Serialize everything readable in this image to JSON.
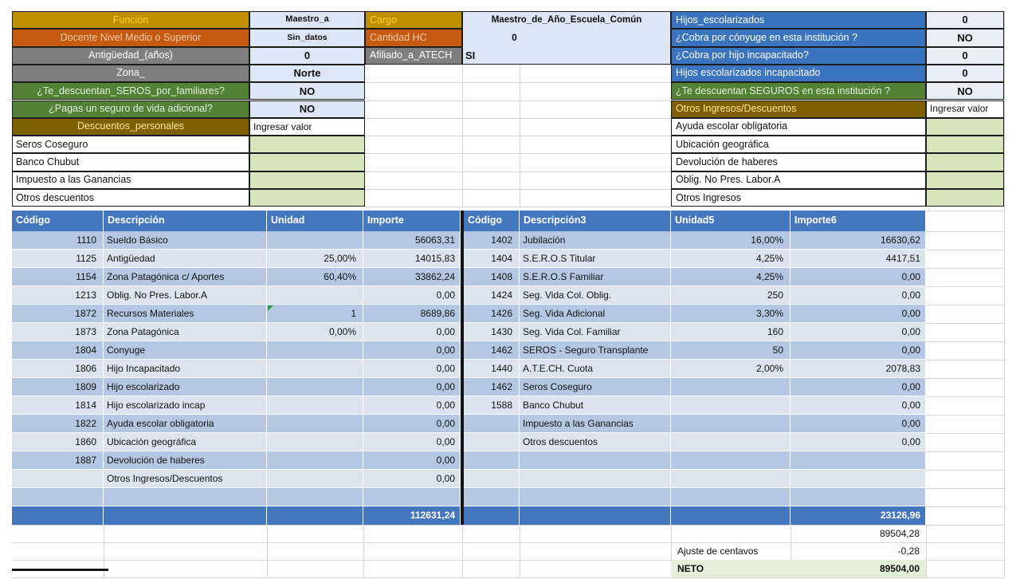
{
  "colors": {
    "gold": "#BF8F00",
    "orange": "#C55A11",
    "gray": "#7F7F7F",
    "green_label": "#538135",
    "olive": "#7F6000",
    "blue_label": "#3A73BE",
    "value_blue": "#DCE6F4",
    "value_lightblue": "#E9EDF5",
    "input_green": "#D7E4BC",
    "header_blue": "#4577BE",
    "band_dark": "#B5C7E2",
    "band_light": "#DCE4F0",
    "neto_green": "#E4EFDA",
    "gridline": "#D6D6D6",
    "border_black": "#1c1c1c"
  },
  "top": {
    "left_rows": [
      {
        "label": "Función",
        "bg": "gold",
        "value": "Maestro_a",
        "kind": "blue",
        "size": 11
      },
      {
        "label": "Docente Nivel Medio o Superior",
        "bg": "orange",
        "value": "Sin_datos",
        "kind": "blue",
        "size": 10.5
      },
      {
        "label": "Antigüedad_(años)",
        "bg": "gray",
        "value": "0",
        "kind": "blue",
        "size": 13
      },
      {
        "label": "Zona_",
        "bg": "gray",
        "value": "Norte",
        "kind": "blue",
        "size": 13
      },
      {
        "label": "¿Te_descuentan_SEROS_por_familiares?",
        "bg": "green",
        "value": "NO",
        "kind": "blue",
        "size": 13
      },
      {
        "label": "¿Pagas un seguro de vida adicional?",
        "bg": "green",
        "value": "NO",
        "kind": "blue",
        "size": 13
      },
      {
        "label": "Descuentos_personales",
        "bg": "olive",
        "value": "Ingresar valor",
        "kind": "white",
        "size": 12
      },
      {
        "label": "Seros Coseguro",
        "bg": "white",
        "value": "",
        "kind": "green-input"
      },
      {
        "label": "Banco Chubut",
        "bg": "white",
        "value": "",
        "kind": "green-input"
      },
      {
        "label": "Impuesto a las Ganancias",
        "bg": "white",
        "value": "",
        "kind": "green-input"
      },
      {
        "label": "Otros descuentos",
        "bg": "white",
        "value": "",
        "kind": "green-input"
      }
    ],
    "middle": {
      "rows": [
        {
          "label": "Cargo",
          "bg": "gold"
        },
        {
          "label": "Cantidad HC",
          "bg": "orange"
        },
        {
          "label": "Afiliado_a_ATECH",
          "bg": "gray"
        }
      ],
      "merged": {
        "cargo_value": "Maestro_de_Año_Escuela_Común",
        "hc_value": "0",
        "atech_value": "SI"
      }
    },
    "right_rows": [
      {
        "label": "Hijos_escolarizados",
        "bg": "blue",
        "value": "0",
        "kind": "lightblue",
        "size": 13
      },
      {
        "label": "¿Cobra por cónyuge en esta institución ?",
        "bg": "blue",
        "value": "NO",
        "kind": "lightblue",
        "size": 13
      },
      {
        "label": "¿Cobra por hijo incapacitado?",
        "bg": "blue",
        "value": "0",
        "kind": "lightblue",
        "size": 13
      },
      {
        "label": "Hijos escolarizados incapacitado",
        "bg": "blue",
        "value": "0",
        "kind": "lightblue",
        "size": 13
      },
      {
        "label": "¿Te descuentan SEGUROS en esta institución ?",
        "bg": "green",
        "value": "NO",
        "kind": "lightblue",
        "size": 13
      },
      {
        "label": "Otros Ingresos/Descuentos",
        "bg": "olive",
        "value": "Ingresar valor",
        "kind": "white",
        "size": 12
      },
      {
        "label": "Ayuda escolar obligatoria",
        "bg": "white",
        "value": "",
        "kind": "green-input"
      },
      {
        "label": "Ubicación geográfica",
        "bg": "white",
        "value": "",
        "kind": "green-input"
      },
      {
        "label": "Devolución de haberes",
        "bg": "white",
        "value": "",
        "kind": "green-input"
      },
      {
        "label": "Oblig. No Pres. Labor.A",
        "bg": "white",
        "value": "",
        "kind": "green-input"
      },
      {
        "label": "Otros Ingresos",
        "bg": "white",
        "value": "",
        "kind": "green-input"
      }
    ]
  },
  "table": {
    "left": {
      "headers": [
        "Código",
        "Descripción",
        "Unidad",
        "Importe"
      ],
      "rows": [
        [
          "1110",
          "Sueldo Básico",
          "",
          "56063,31"
        ],
        [
          "1125",
          "Antigüedad",
          "25,00%",
          "14015,83"
        ],
        [
          "1154",
          "Zona Patagónica c/ Aportes",
          "60,40%",
          "33862,24"
        ],
        [
          "1213",
          "Oblig. No Pres. Labor.A",
          "",
          "0,00"
        ],
        [
          "1872",
          "Recursos Materiales",
          "1",
          "8689,86"
        ],
        [
          "1873",
          "Zona Patagónica",
          "0,00%",
          "0,00"
        ],
        [
          "1804",
          "Conyuge",
          "",
          "0,00"
        ],
        [
          "1806",
          "Hijo Incapacitado",
          "",
          "0,00"
        ],
        [
          "1809",
          "Hijo escolarizado",
          "",
          "0,00"
        ],
        [
          "1814",
          "Hijo escolarizado incap",
          "",
          "0,00"
        ],
        [
          "1822",
          "Ayuda escolar obligatoria",
          "",
          "0,00"
        ],
        [
          "1860",
          "Ubicación geográfica",
          "",
          "0,00"
        ],
        [
          "1887",
          "Devolución de haberes",
          "",
          "0,00"
        ],
        [
          "",
          "Otros Ingresos/Descuentos",
          "",
          "0,00"
        ],
        [
          "",
          "",
          "",
          ""
        ]
      ],
      "total": "112631,24",
      "comment_marker_row": 4
    },
    "right": {
      "headers": [
        "Código",
        "Descripción3",
        "Unidad5",
        "Importe6"
      ],
      "rows": [
        [
          "1402",
          "Jubilación",
          "16,00%",
          "16630,62"
        ],
        [
          "1404",
          "S.E.R.O.S Titular",
          "4,25%",
          "4417,51"
        ],
        [
          "1408",
          "S.E.R.O.S Familiar",
          "4,25%",
          "0,00"
        ],
        [
          "1424",
          "Seg. Vida Col. Oblig.",
          "250",
          "0,00"
        ],
        [
          "1426",
          "Seg. Vida Adicional",
          "3,30%",
          "0,00"
        ],
        [
          "1430",
          "Seg. Vida Col. Familiar",
          "160",
          "0,00"
        ],
        [
          "1462",
          "SEROS - Seguro Transplante",
          "50",
          "0,00"
        ],
        [
          "1440",
          "A.T.E.CH. Cuota",
          "2,00%",
          "2078,83"
        ],
        [
          "1462",
          "Seros Coseguro",
          "",
          "0,00"
        ],
        [
          "1588",
          "Banco Chubut",
          "",
          "0,00"
        ],
        [
          "",
          "Impuesto a las Ganancias",
          "",
          "0,00"
        ],
        [
          "",
          "Otros descuentos",
          "",
          "0,00"
        ],
        [
          "",
          "",
          "",
          ""
        ],
        [
          "",
          "",
          "",
          ""
        ],
        [
          "",
          "",
          "",
          ""
        ]
      ],
      "total": "23126,96"
    }
  },
  "summary": {
    "subtotal": "89504,28",
    "ajuste_label": "Ajuste de centavos",
    "ajuste_value": "-0,28",
    "neto_label": "NETO",
    "neto_value": "89504,00"
  }
}
